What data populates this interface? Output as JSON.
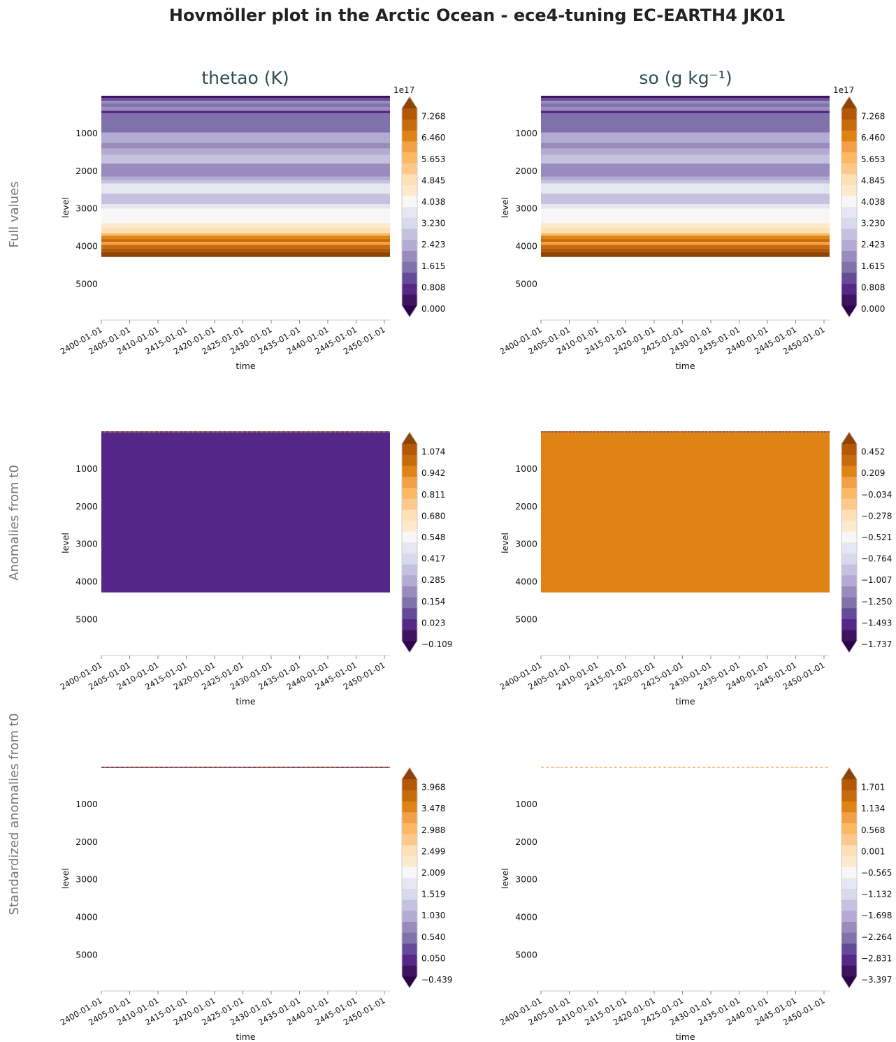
{
  "title": "Hovmöller plot in the Arctic Ocean - ece4-tuning EC-EARTH4 JK01",
  "columns": [
    "thetao (K)",
    "so (g kg⁻¹)"
  ],
  "rows": [
    "Full values",
    "Anomalies from t0",
    "Standardized anomalies from t0"
  ],
  "chart_data": [
    {
      "type": "heatmap",
      "id": "full-thetao",
      "row": "Full values",
      "column": "thetao (K)",
      "xlabel": "time",
      "ylabel": "level",
      "xticks": [
        "2400-01-01",
        "2405-01-01",
        "2410-01-01",
        "2415-01-01",
        "2420-01-01",
        "2425-01-01",
        "2430-01-01",
        "2435-01-01",
        "2440-01-01",
        "2445-01-01",
        "2450-01-01"
      ],
      "ylim": [
        5900,
        0
      ],
      "yticks": [
        1000,
        2000,
        3000,
        4000,
        5000
      ],
      "colorbar_ticks": [
        "0.000",
        "0.808",
        "1.615",
        "2.423",
        "3.230",
        "4.038",
        "4.845",
        "5.653",
        "6.460",
        "7.268"
      ],
      "colorbar_offset": "1e17",
      "bands": [
        {
          "from": 0,
          "to": 60,
          "level": 1
        },
        {
          "from": 60,
          "to": 130,
          "level": 3
        },
        {
          "from": 130,
          "to": 200,
          "level": 5
        },
        {
          "from": 200,
          "to": 300,
          "level": 4
        },
        {
          "from": 300,
          "to": 400,
          "level": 5
        },
        {
          "from": 400,
          "to": 470,
          "level": 2
        },
        {
          "from": 470,
          "to": 980,
          "level": 4
        },
        {
          "from": 980,
          "to": 1250,
          "level": 6
        },
        {
          "from": 1250,
          "to": 1400,
          "level": 5
        },
        {
          "from": 1400,
          "to": 1570,
          "level": 6
        },
        {
          "from": 1570,
          "to": 1800,
          "level": 7
        },
        {
          "from": 1800,
          "to": 2150,
          "level": 5
        },
        {
          "from": 2150,
          "to": 2250,
          "level": 6
        },
        {
          "from": 2250,
          "to": 2330,
          "level": 7
        },
        {
          "from": 2330,
          "to": 2600,
          "level": 9
        },
        {
          "from": 2600,
          "to": 2880,
          "level": 7
        },
        {
          "from": 2880,
          "to": 3000,
          "level": 9
        },
        {
          "from": 3000,
          "to": 3380,
          "level": 10
        },
        {
          "from": 3380,
          "to": 3500,
          "level": 11
        },
        {
          "from": 3500,
          "to": 3650,
          "level": 12
        },
        {
          "from": 3650,
          "to": 3720,
          "level": 14
        },
        {
          "from": 3720,
          "to": 3800,
          "level": 16
        },
        {
          "from": 3800,
          "to": 3880,
          "level": 17
        },
        {
          "from": 3880,
          "to": 3960,
          "level": 15
        },
        {
          "from": 3960,
          "to": 4050,
          "level": 17
        },
        {
          "from": 4050,
          "to": 4150,
          "level": 18
        },
        {
          "from": 4150,
          "to": 4280,
          "level": 19
        }
      ]
    },
    {
      "type": "heatmap",
      "id": "full-so",
      "row": "Full values",
      "column": "so (g kg⁻¹)",
      "xlabel": "time",
      "ylabel": "level",
      "xticks": [
        "2400-01-01",
        "2405-01-01",
        "2410-01-01",
        "2415-01-01",
        "2420-01-01",
        "2425-01-01",
        "2430-01-01",
        "2435-01-01",
        "2440-01-01",
        "2445-01-01",
        "2450-01-01"
      ],
      "ylim": [
        5900,
        0
      ],
      "yticks": [
        1000,
        2000,
        3000,
        4000,
        5000
      ],
      "colorbar_ticks": [
        "0.000",
        "0.808",
        "1.615",
        "2.423",
        "3.230",
        "4.038",
        "4.845",
        "5.653",
        "6.460",
        "7.268"
      ],
      "colorbar_offset": "1e17",
      "bands": [
        {
          "from": 0,
          "to": 60,
          "level": 1
        },
        {
          "from": 60,
          "to": 130,
          "level": 3
        },
        {
          "from": 130,
          "to": 200,
          "level": 5
        },
        {
          "from": 200,
          "to": 300,
          "level": 4
        },
        {
          "from": 300,
          "to": 400,
          "level": 5
        },
        {
          "from": 400,
          "to": 470,
          "level": 2
        },
        {
          "from": 470,
          "to": 980,
          "level": 4
        },
        {
          "from": 980,
          "to": 1250,
          "level": 6
        },
        {
          "from": 1250,
          "to": 1400,
          "level": 5
        },
        {
          "from": 1400,
          "to": 1570,
          "level": 6
        },
        {
          "from": 1570,
          "to": 1800,
          "level": 7
        },
        {
          "from": 1800,
          "to": 2150,
          "level": 5
        },
        {
          "from": 2150,
          "to": 2250,
          "level": 6
        },
        {
          "from": 2250,
          "to": 2330,
          "level": 7
        },
        {
          "from": 2330,
          "to": 2600,
          "level": 9
        },
        {
          "from": 2600,
          "to": 2880,
          "level": 7
        },
        {
          "from": 2880,
          "to": 3000,
          "level": 9
        },
        {
          "from": 3000,
          "to": 3380,
          "level": 10
        },
        {
          "from": 3380,
          "to": 3500,
          "level": 11
        },
        {
          "from": 3500,
          "to": 3650,
          "level": 12
        },
        {
          "from": 3650,
          "to": 3720,
          "level": 14
        },
        {
          "from": 3720,
          "to": 3800,
          "level": 16
        },
        {
          "from": 3800,
          "to": 3880,
          "level": 17
        },
        {
          "from": 3880,
          "to": 3960,
          "level": 15
        },
        {
          "from": 3960,
          "to": 4050,
          "level": 17
        },
        {
          "from": 4050,
          "to": 4150,
          "level": 18
        },
        {
          "from": 4150,
          "to": 4280,
          "level": 19
        }
      ]
    },
    {
      "type": "heatmap",
      "id": "anom-thetao",
      "row": "Anomalies from t0",
      "column": "thetao (K)",
      "xlabel": "time",
      "ylabel": "level",
      "xticks": [
        "2400-01-01",
        "2405-01-01",
        "2410-01-01",
        "2415-01-01",
        "2420-01-01",
        "2425-01-01",
        "2430-01-01",
        "2435-01-01",
        "2440-01-01",
        "2445-01-01",
        "2450-01-01"
      ],
      "ylim": [
        5900,
        0
      ],
      "yticks": [
        1000,
        2000,
        3000,
        4000,
        5000
      ],
      "colorbar_ticks": [
        "−0.109",
        "0.023",
        "0.154",
        "0.285",
        "0.417",
        "0.548",
        "0.680",
        "0.811",
        "0.942",
        "1.074"
      ],
      "colorbar_offset": "",
      "bands": [
        {
          "from": 0,
          "to": 4280,
          "level": 2
        }
      ],
      "surface_line": {
        "level": 0,
        "pattern": "dashed-mixed"
      }
    },
    {
      "type": "heatmap",
      "id": "anom-so",
      "row": "Anomalies from t0",
      "column": "so (g kg⁻¹)",
      "xlabel": "time",
      "ylabel": "level",
      "xticks": [
        "2400-01-01",
        "2405-01-01",
        "2410-01-01",
        "2415-01-01",
        "2420-01-01",
        "2425-01-01",
        "2430-01-01",
        "2435-01-01",
        "2440-01-01",
        "2445-01-01",
        "2450-01-01"
      ],
      "ylim": [
        5900,
        0
      ],
      "yticks": [
        1000,
        2000,
        3000,
        4000,
        5000
      ],
      "colorbar_ticks": [
        "−1.737",
        "−1.493",
        "−1.250",
        "−1.007",
        "−0.764",
        "−0.521",
        "−0.278",
        "−0.034",
        "0.209",
        "0.452"
      ],
      "colorbar_offset": "",
      "bands": [
        {
          "from": 0,
          "to": 4280,
          "level": 16
        }
      ],
      "surface_line": {
        "level": 0,
        "pattern": "dashed-dark"
      }
    },
    {
      "type": "heatmap",
      "id": "std-thetao",
      "row": "Standardized anomalies from t0",
      "column": "thetao (K)",
      "xlabel": "time",
      "ylabel": "level",
      "xticks": [
        "2400-01-01",
        "2405-01-01",
        "2410-01-01",
        "2415-01-01",
        "2420-01-01",
        "2425-01-01",
        "2430-01-01",
        "2435-01-01",
        "2440-01-01",
        "2445-01-01",
        "2450-01-01"
      ],
      "ylim": [
        5900,
        0
      ],
      "yticks": [
        1000,
        2000,
        3000,
        4000,
        5000
      ],
      "colorbar_ticks": [
        "−0.439",
        "0.050",
        "0.540",
        "1.030",
        "1.519",
        "2.009",
        "2.499",
        "2.988",
        "3.478",
        "3.968"
      ],
      "colorbar_offset": "",
      "bands": [],
      "surface_line": {
        "level": 0,
        "pattern": "dashed-mixed"
      }
    },
    {
      "type": "heatmap",
      "id": "std-so",
      "row": "Standardized anomalies from t0",
      "column": "so (g kg⁻¹)",
      "xlabel": "time",
      "ylabel": "level",
      "xticks": [
        "2400-01-01",
        "2405-01-01",
        "2410-01-01",
        "2415-01-01",
        "2420-01-01",
        "2425-01-01",
        "2430-01-01",
        "2435-01-01",
        "2440-01-01",
        "2445-01-01",
        "2450-01-01"
      ],
      "ylim": [
        5900,
        0
      ],
      "yticks": [
        1000,
        2000,
        3000,
        4000,
        5000
      ],
      "colorbar_ticks": [
        "−3.397",
        "−2.831",
        "−2.264",
        "−1.698",
        "−1.132",
        "−0.565",
        "0.001",
        "0.568",
        "1.134",
        "1.701"
      ],
      "colorbar_offset": "",
      "bands": [],
      "surface_line": {
        "level": 0,
        "pattern": "dashed-light"
      }
    }
  ],
  "colormap": [
    "#2d004b",
    "#3f1360",
    "#542788",
    "#664a9a",
    "#8073ac",
    "#998cbd",
    "#b2abd2",
    "#c6c1df",
    "#d8daeb",
    "#e6e6f1",
    "#f7f7f7",
    "#fde9cc",
    "#fee0b6",
    "#fdc88c",
    "#fdb863",
    "#f2a046",
    "#e08214",
    "#c86b0c",
    "#b35806",
    "#8f4405"
  ],
  "colors": {
    "title": "#222222",
    "column_title": "#2f4f4f",
    "row_label": "#777777",
    "axis_text": "#111111",
    "axis_line": "#cccccc",
    "frame": "#cccccc"
  }
}
